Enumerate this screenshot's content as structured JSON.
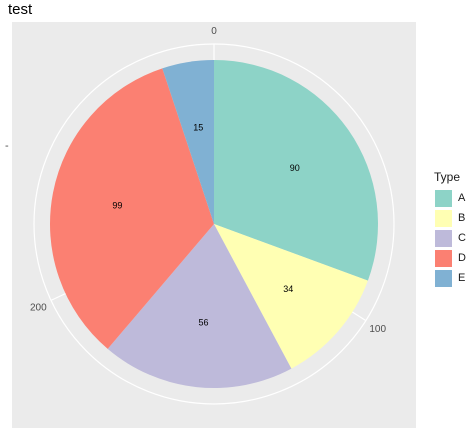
{
  "chart_data": {
    "type": "pie",
    "title": "test",
    "xlabel": "",
    "ylabel": "",
    "y_tick_label": "-",
    "categories": [
      "A",
      "B",
      "C",
      "D",
      "E"
    ],
    "values": [
      90,
      34,
      56,
      99,
      15
    ],
    "colors": [
      "#8dd3c7",
      "#ffffb3",
      "#bebada",
      "#fb8072",
      "#80b1d3"
    ],
    "theta_range": [
      0,
      294
    ],
    "theta_ticks": [
      0,
      100,
      200
    ],
    "theta_tick_labels": [
      "0",
      "100",
      "200"
    ],
    "grid": true,
    "legend": {
      "title": "Type",
      "position": "right"
    }
  }
}
